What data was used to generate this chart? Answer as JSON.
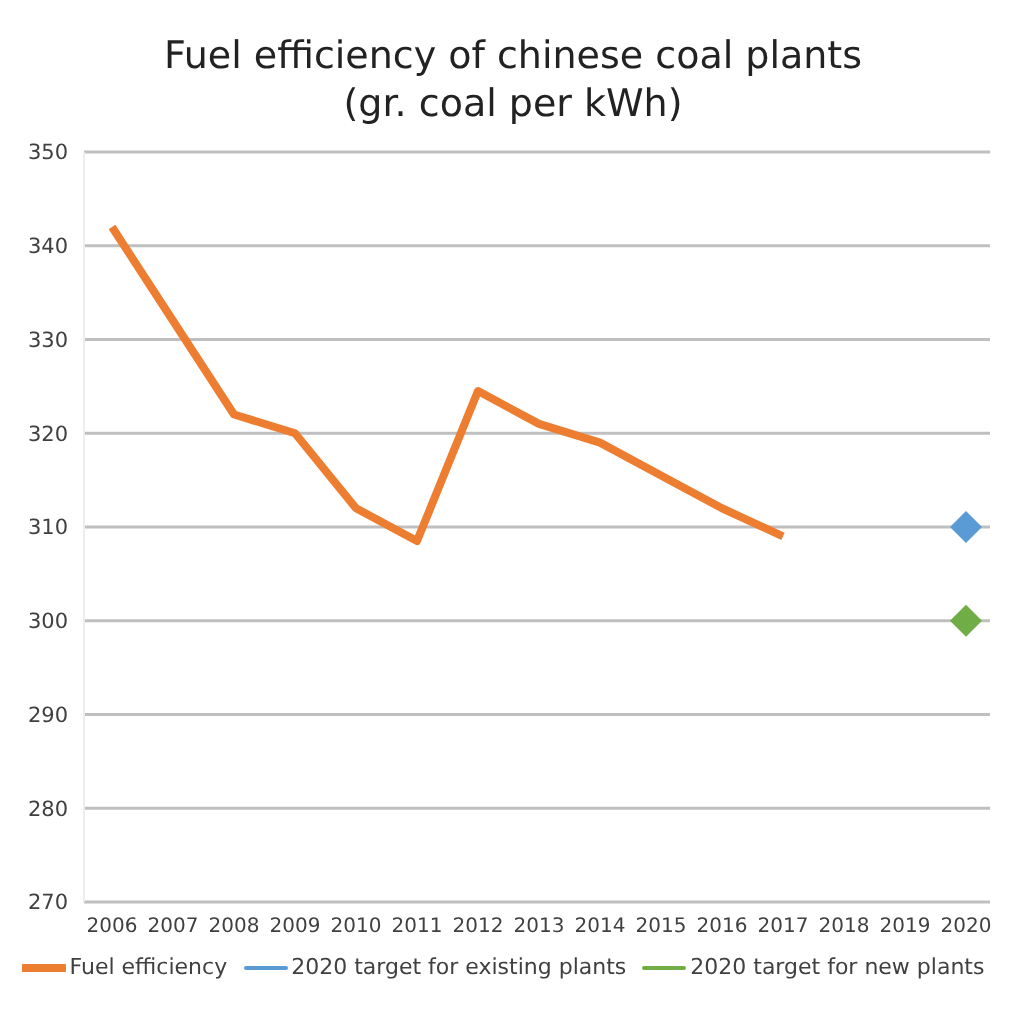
{
  "chart_data": {
    "type": "line",
    "title": "Fuel efficiency of chinese coal plants\n(gr. coal per kWh)",
    "categories": [
      "2006",
      "2007",
      "2008",
      "2009",
      "2010",
      "2011",
      "2012",
      "2013",
      "2014",
      "2015",
      "2016",
      "2017",
      "2018",
      "2019",
      "2020"
    ],
    "series": [
      {
        "name": "Fuel efficiency",
        "color": "#ed7d31",
        "marker": "none",
        "values": [
          342,
          332,
          322,
          320,
          312,
          308.5,
          324.5,
          321,
          319,
          315.5,
          312,
          309,
          null,
          null,
          null
        ]
      },
      {
        "name": "2020 target for existing plants",
        "color": "#5b9bd5",
        "marker": "diamond",
        "values": [
          null,
          null,
          null,
          null,
          null,
          null,
          null,
          null,
          null,
          null,
          null,
          null,
          null,
          null,
          310
        ]
      },
      {
        "name": "2020 target for new plants",
        "color": "#70ad47",
        "marker": "diamond",
        "values": [
          null,
          null,
          null,
          null,
          null,
          null,
          null,
          null,
          null,
          null,
          null,
          null,
          null,
          null,
          300
        ]
      }
    ],
    "ylim": [
      270,
      350
    ],
    "yticks": [
      270,
      280,
      290,
      300,
      310,
      320,
      330,
      340,
      350
    ],
    "grid": "y",
    "legend": "bottom"
  }
}
